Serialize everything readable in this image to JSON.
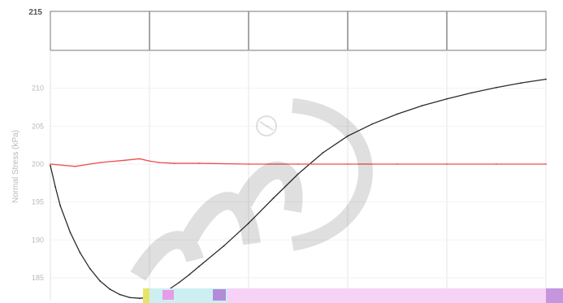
{
  "chart_data": {
    "type": "line",
    "ylabel": "Normal Stress (kPa)",
    "ylim": [
      182,
      215
    ],
    "xlim": [
      0,
      100
    ],
    "yticks": [
      185,
      190,
      195,
      200,
      205,
      210
    ],
    "top_label": "215",
    "grid": true,
    "series": [
      {
        "color": "#2b2b2b",
        "x": [
          0,
          1,
          2,
          4,
          6,
          8,
          10,
          12,
          14,
          16,
          18,
          20,
          22,
          24,
          26,
          28,
          30,
          35,
          40,
          45,
          50,
          55,
          60,
          65,
          70,
          75,
          80,
          85,
          90,
          95,
          100
        ],
        "y": [
          199.8,
          197.0,
          194.5,
          191.0,
          188.3,
          186.2,
          184.6,
          183.5,
          182.8,
          182.4,
          182.3,
          182.4,
          182.8,
          183.5,
          184.4,
          185.4,
          186.5,
          189.2,
          192.2,
          195.5,
          198.7,
          201.5,
          203.7,
          205.3,
          206.6,
          207.7,
          208.6,
          209.4,
          210.1,
          210.7,
          211.2
        ]
      },
      {
        "color": "#ef4d4d",
        "x": [
          0,
          5,
          10,
          15,
          18,
          20,
          22,
          25,
          30,
          40,
          50,
          60,
          70,
          80,
          90,
          100
        ],
        "y": [
          200.0,
          199.7,
          200.2,
          200.5,
          200.7,
          200.4,
          200.2,
          200.1,
          200.1,
          200.0,
          200.0,
          200.0,
          200.0,
          200.0,
          200.0,
          200.0
        ]
      }
    ]
  }
}
